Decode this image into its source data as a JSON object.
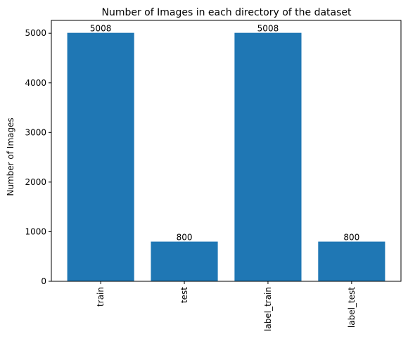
{
  "chart_data": {
    "type": "bar",
    "title": "Number of Images in each directory of the dataset",
    "xlabel": "",
    "ylabel": "Number of Images",
    "categories": [
      "train",
      "test",
      "label_train",
      "label_test"
    ],
    "values": [
      5008,
      800,
      5008,
      800
    ],
    "data_labels": [
      "5008",
      "800",
      "5008",
      "800"
    ],
    "ylim": [
      0,
      5258.4
    ],
    "yticks": [
      0,
      1000,
      2000,
      3000,
      4000,
      5000
    ],
    "ytick_labels": [
      "0",
      "1000",
      "2000",
      "3000",
      "4000",
      "5000"
    ],
    "x_tick_rotation": "vertical",
    "grid": false,
    "bar_color": "#1f77b4"
  }
}
